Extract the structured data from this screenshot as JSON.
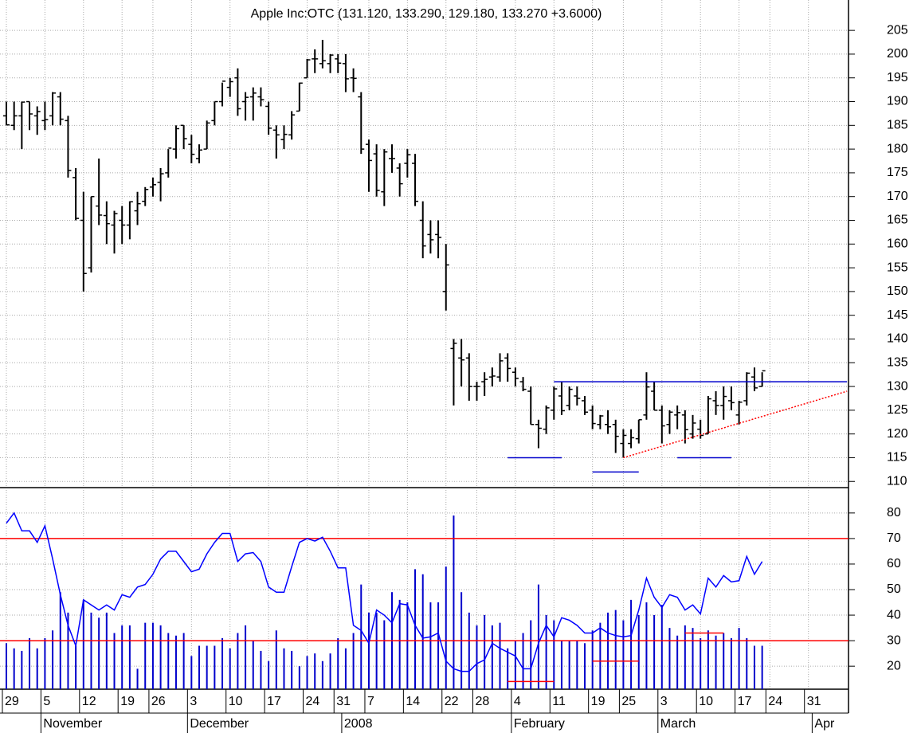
{
  "chart_data": [
    {
      "type": "ohlc",
      "title": "Apple Inc:OTC (131.120, 133.290, 129.180, 133.270 +3.6000)",
      "categories": [
        "29",
        null,
        null,
        null,
        null,
        "5",
        null,
        null,
        null,
        null,
        "12",
        null,
        null,
        null,
        null,
        "19",
        null,
        null,
        null,
        "26",
        null,
        null,
        null,
        null,
        "3",
        null,
        null,
        null,
        null,
        "10",
        null,
        null,
        null,
        null,
        "17",
        null,
        null,
        null,
        null,
        "24",
        null,
        null,
        null,
        "31",
        null,
        null,
        null,
        "7",
        null,
        null,
        null,
        null,
        "14",
        null,
        null,
        null,
        null,
        "22",
        null,
        null,
        null,
        "28",
        null,
        null,
        null,
        null,
        "4",
        null,
        null,
        null,
        null,
        "11",
        null,
        null,
        null,
        null,
        "19",
        null,
        null,
        null,
        "25",
        null,
        null,
        null,
        null,
        "3",
        null,
        null,
        null,
        null,
        "10",
        null,
        null,
        null,
        null,
        "17",
        null,
        null,
        null,
        "24",
        null,
        null,
        null,
        null,
        "31",
        null,
        null,
        null
      ],
      "categories_month": [
        null,
        null,
        null,
        null,
        null,
        "November",
        null,
        null,
        null,
        null,
        null,
        null,
        null,
        null,
        null,
        null,
        null,
        null,
        null,
        null,
        null,
        null,
        null,
        null,
        "December",
        null,
        null,
        null,
        null,
        null,
        null,
        null,
        null,
        null,
        null,
        null,
        null,
        null,
        null,
        null,
        null,
        null,
        null,
        null,
        "2008",
        null,
        null,
        null,
        null,
        null,
        null,
        null,
        null,
        null,
        null,
        null,
        null,
        null,
        null,
        null,
        null,
        null,
        null,
        null,
        null,
        null,
        "February",
        null,
        null,
        null,
        null,
        null,
        null,
        null,
        null,
        null,
        null,
        null,
        null,
        null,
        null,
        null,
        null,
        null,
        null,
        "March",
        null,
        null,
        null,
        null,
        null,
        null,
        null,
        null,
        null,
        null,
        null,
        null,
        null,
        null,
        null,
        null,
        null,
        null,
        null,
        "Apr",
        null,
        null
      ],
      "open": [
        187,
        185,
        187,
        190,
        187,
        186,
        187,
        191,
        186,
        174,
        165,
        155,
        168,
        166,
        164,
        165,
        164,
        167,
        169,
        172,
        173,
        175,
        180,
        185,
        181,
        178,
        180,
        186,
        190,
        193,
        195,
        190,
        191,
        191,
        189,
        184,
        182,
        183,
        188,
        195,
        199,
        198,
        198,
        199,
        198,
        195,
        191,
        181,
        179,
        171,
        178,
        176,
        177,
        177,
        165,
        162,
        162,
        150,
        138,
        136,
        136,
        130,
        131,
        132,
        132,
        136,
        133,
        131,
        129,
        122,
        121,
        125,
        128,
        126,
        128,
        127,
        125,
        122,
        122,
        122,
        118,
        118,
        119,
        124,
        129,
        125,
        122,
        124,
        124,
        120,
        121,
        120,
        127,
        126,
        127,
        124,
        127,
        132,
        130,
        null,
        null,
        null,
        null,
        null,
        null,
        null,
        null,
        null
      ],
      "high": [
        190,
        190,
        190,
        190,
        189,
        190,
        192,
        192,
        187,
        176,
        171,
        170,
        178,
        169,
        167,
        168,
        169,
        171,
        172,
        174,
        176,
        180,
        185,
        185,
        183,
        181,
        186,
        190,
        194,
        195,
        197,
        192,
        193,
        193,
        190,
        185,
        185,
        188,
        194,
        199,
        201,
        203,
        200,
        200,
        200,
        197,
        192,
        182,
        181,
        180,
        181,
        177,
        180,
        179,
        169,
        165,
        165,
        160,
        140,
        140,
        137,
        131,
        133,
        134,
        137,
        137,
        134,
        132,
        130,
        123,
        126,
        130,
        131,
        130,
        130,
        128,
        126,
        124,
        125,
        123,
        121,
        121,
        123,
        133,
        131,
        126,
        125,
        126,
        125,
        124,
        123,
        128,
        129,
        130,
        130,
        127,
        133,
        134,
        133,
        null,
        null,
        null,
        null,
        null,
        null,
        null,
        null,
        null
      ],
      "low": [
        185,
        184,
        180,
        184,
        183,
        184,
        185,
        185,
        174,
        165,
        150,
        154,
        164,
        160,
        158,
        160,
        161,
        164,
        168,
        170,
        169,
        174,
        178,
        180,
        177,
        177,
        180,
        185,
        189,
        191,
        187,
        186,
        186,
        189,
        183,
        178,
        180,
        182,
        188,
        195,
        196,
        197,
        196,
        196,
        192,
        192,
        179,
        171,
        170,
        168,
        175,
        170,
        174,
        168,
        157,
        158,
        157,
        146,
        126,
        130,
        127,
        127,
        128,
        130,
        131,
        131,
        130,
        129,
        122,
        117,
        120,
        123,
        124,
        125,
        126,
        124,
        121,
        121,
        120,
        116,
        115,
        117,
        118,
        123,
        125,
        118,
        120,
        121,
        118,
        119,
        119,
        120,
        124,
        123,
        125,
        122,
        126,
        129,
        130,
        null,
        null,
        null,
        null,
        null,
        null,
        null,
        null,
        null
      ],
      "close": [
        185.1,
        187,
        189.9,
        187.4,
        187.9,
        186.2,
        191.8,
        186.3,
        175.5,
        165.4,
        153.8,
        170,
        166.1,
        164.3,
        166.4,
        164,
        168.9,
        168.5,
        171.5,
        172.5,
        174.8,
        180.2,
        184.3,
        182.2,
        178.9,
        179.8,
        185.5,
        190,
        194.3,
        194.2,
        188.5,
        190.9,
        191.8,
        190.4,
        184.4,
        183,
        183.1,
        187.2,
        193.9,
        198.8,
        199,
        198.6,
        199.8,
        198.1,
        194.8,
        194.9,
        180,
        177.6,
        171.3,
        179.4,
        178,
        172.7,
        178.8,
        169,
        159.6,
        160.9,
        161.4,
        155.6,
        139.1,
        135.6,
        130,
        130,
        131.5,
        132.2,
        135.4,
        133.8,
        131.7,
        129.4,
        122,
        121.2,
        125.5,
        129.5,
        124.9,
        129.4,
        127.5,
        124.6,
        122.2,
        123.8,
        121.5,
        119.5,
        119.7,
        119.2,
        123,
        129.9,
        125,
        121.7,
        124.6,
        124.5,
        120.9,
        122.3,
        119.7,
        127.4,
        126,
        127.9,
        126.6,
        126.7,
        132.8,
        129.7,
        133.3,
        null,
        null,
        null,
        null,
        null,
        null,
        null,
        null,
        null
      ],
      "color": "#000000",
      "ylim": [
        108.7,
        211.4
      ],
      "yticks": [
        110,
        115,
        120,
        125,
        130,
        135,
        140,
        145,
        150,
        155,
        160,
        165,
        170,
        175,
        180,
        185,
        190,
        195,
        200,
        205
      ],
      "grid": true,
      "lines": [
        {
          "x": [
            71,
            109
          ],
          "y": [
            131,
            131
          ],
          "color": "#0000cc",
          "dash": false
        },
        {
          "x": [
            65,
            72
          ],
          "y": [
            115,
            115
          ],
          "color": "#0000cc",
          "dash": false
        },
        {
          "x": [
            76,
            82
          ],
          "y": [
            112,
            112
          ],
          "color": "#0000cc",
          "dash": false
        },
        {
          "x": [
            87,
            94
          ],
          "y": [
            115,
            115
          ],
          "color": "#0000cc",
          "dash": false
        },
        {
          "x": [
            80,
            109
          ],
          "y": [
            115,
            129
          ],
          "color": "#ff0000",
          "dash": true
        }
      ]
    },
    {
      "type": "indicator",
      "volume": [
        29,
        27,
        26,
        31,
        27,
        31,
        34,
        49,
        41,
        28,
        46,
        41,
        39,
        41,
        33,
        36,
        36,
        19,
        37,
        37,
        36,
        33,
        32,
        33,
        24,
        28,
        28,
        28,
        31,
        27,
        33,
        36,
        30,
        26,
        22,
        34,
        27,
        26,
        20,
        24,
        25,
        22,
        25,
        31,
        27,
        33,
        52,
        41,
        41,
        38,
        49,
        46,
        45,
        58,
        56,
        45,
        45,
        59,
        79,
        49,
        41,
        36,
        40,
        36,
        37,
        27,
        30,
        33,
        38,
        52,
        40,
        38,
        30,
        30,
        30,
        29,
        34,
        37,
        41,
        42,
        38,
        46,
        40,
        45,
        40,
        44,
        35,
        32,
        36,
        35,
        31,
        34,
        32,
        33,
        31,
        35,
        31,
        28,
        28,
        null,
        null,
        null,
        null,
        null,
        null,
        null,
        null,
        null
      ],
      "volume_color": "#0000cc",
      "rsi": [
        76,
        80,
        73,
        73,
        68.5,
        75,
        62,
        48,
        36,
        28,
        46,
        44,
        42,
        44,
        42,
        48,
        47,
        51,
        52,
        56,
        62,
        65,
        65,
        61,
        57,
        58,
        64,
        68.5,
        72,
        72,
        61,
        64,
        64.5,
        61,
        51,
        49,
        49,
        59,
        68.5,
        70,
        69,
        70.5,
        65,
        58.5,
        58.5,
        36,
        34,
        29,
        42,
        40,
        37,
        44.5,
        44,
        36,
        31,
        31.5,
        33,
        22,
        19,
        18,
        18,
        21,
        22.5,
        29,
        27,
        25.5,
        24,
        19,
        19,
        29,
        36,
        31.5,
        39,
        38,
        36,
        33,
        33,
        35,
        33,
        32,
        31.5,
        32,
        42,
        54.5,
        47,
        43,
        48,
        47,
        42,
        44,
        40.5,
        54.5,
        51,
        55.5,
        53,
        53.5,
        63,
        56,
        61,
        null,
        null,
        null,
        null,
        null,
        null,
        null,
        null,
        null
      ],
      "rsi_color": "#0000ff",
      "ylim": [
        11,
        89
      ],
      "yticks": [
        20,
        30,
        40,
        50,
        60,
        70,
        80
      ],
      "grid": true,
      "hlines": [
        70,
        30
      ],
      "hline_color": "#ff0000",
      "lines": [
        {
          "x": [
            65,
            71
          ],
          "y": [
            14,
            14
          ],
          "color": "#ff0000",
          "dash": false
        },
        {
          "x": [
            76,
            82
          ],
          "y": [
            22,
            22
          ],
          "color": "#ff0000",
          "dash": false
        },
        {
          "x": [
            88,
            93
          ],
          "y": [
            33,
            33
          ],
          "color": "#ff0000",
          "dash": false
        }
      ]
    }
  ]
}
